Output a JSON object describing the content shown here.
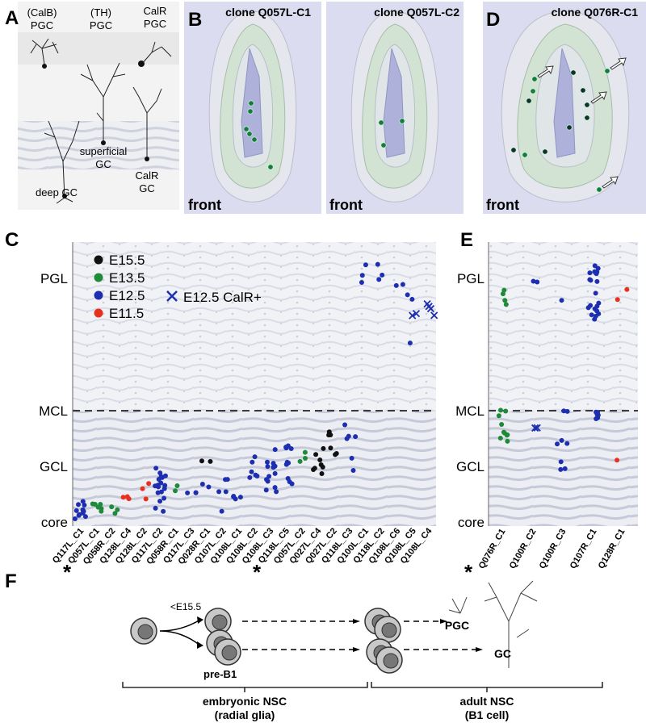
{
  "panel_a": {
    "letter": "A",
    "labels": [
      "(CalB)",
      "PGC",
      "(TH)",
      "PGC",
      "CalR",
      "PGC",
      "superficial",
      "GC",
      "CalR",
      "GC",
      "deep GC"
    ]
  },
  "panel_b": {
    "letter": "B",
    "views": [
      {
        "title": "clone Q057L-C1",
        "side": "front"
      },
      {
        "title": "clone Q057L-C2",
        "side": "front"
      }
    ]
  },
  "panel_d": {
    "letter": "D",
    "title": "clone Q076R-C1",
    "side": "front"
  },
  "panel_c": {
    "letter": "C",
    "layers": [
      "PGL",
      "MCL",
      "GCL",
      "core"
    ],
    "legend": [
      "E15.5",
      "E13.5",
      "E12.5",
      "E11.5",
      "E12.5 CalR+"
    ],
    "clones": [
      "Q117L_C1",
      "Q057L_C1",
      "Q058R_C2",
      "Q128L_C4",
      "Q128L_C2",
      "Q117L_C2",
      "Q058R_C1",
      "Q117L_C3",
      "Q028R_C1",
      "Q107L_C2",
      "Q108L_C1",
      "Q108L_C2",
      "Q108L_C3",
      "Q118L_C5",
      "Q057L_C2",
      "Q027L_C4",
      "Q027L_C2",
      "Q118L_C3",
      "Q100L_C1",
      "Q118L_C2",
      "Q108L_C6",
      "Q108L_C5",
      "Q108L_C4"
    ],
    "asterisks": [
      "*",
      "*"
    ]
  },
  "panel_e": {
    "letter": "E",
    "layers": [
      "PGL",
      "MCL",
      "GCL",
      "core"
    ],
    "clones": [
      "Q076R_C1",
      "Q100R_C2",
      "Q100R_C3",
      "Q107R_C1",
      "Q128R_C1"
    ],
    "asterisk": "*"
  },
  "panel_f": {
    "letter": "F",
    "stage": "<E15.5",
    "pre": "pre-B1",
    "pgc": "PGC",
    "gc": "GC",
    "embryonic": [
      "embryonic NSC",
      "(radial glia)"
    ],
    "adult": [
      "adult NSC",
      "(B1 cell)"
    ]
  }
}
